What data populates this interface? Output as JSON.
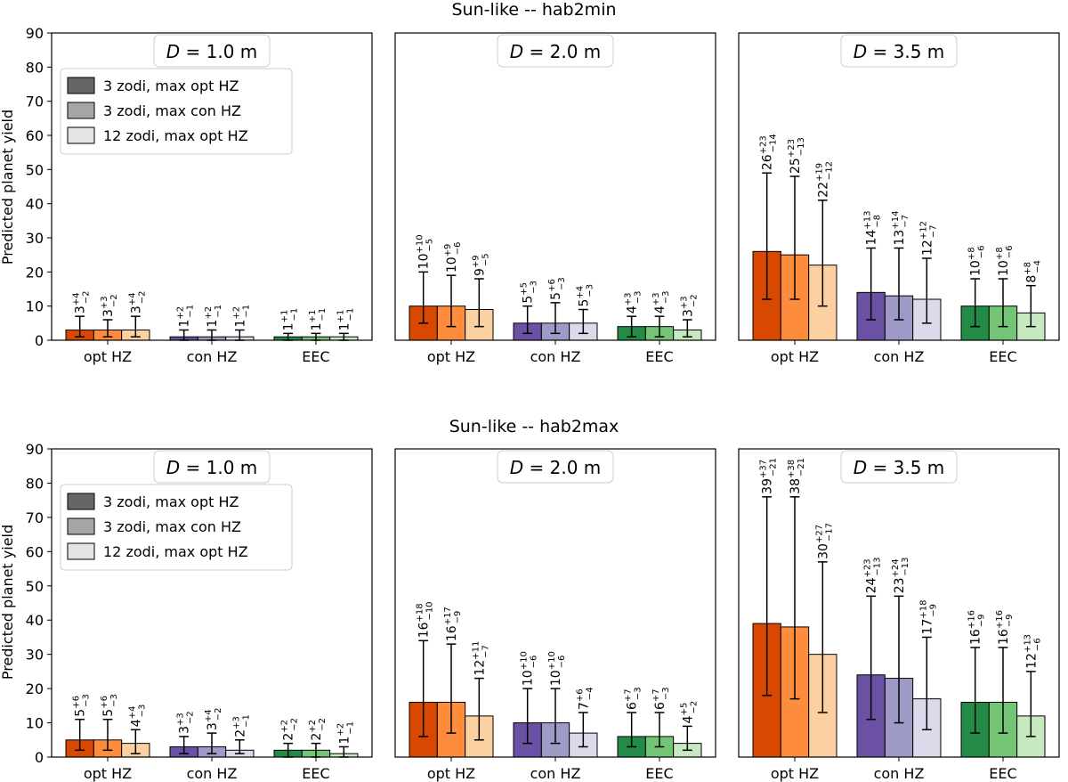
{
  "figure": {
    "rows": [
      {
        "title": "Sun-like -- hab2min",
        "panels": [
          {
            "label": "D = 1.0 m",
            "legend": true
          },
          {
            "label": "D = 2.0 m",
            "legend": false
          },
          {
            "label": "D = 3.5 m",
            "legend": false
          }
        ]
      },
      {
        "title": "Sun-like -- hab2max",
        "panels": [
          {
            "label": "D = 1.0 m",
            "legend": true
          },
          {
            "label": "D = 2.0 m",
            "legend": false
          },
          {
            "label": "D = 3.5 m",
            "legend": false
          }
        ]
      }
    ],
    "legend": [
      "3 zodi, max opt HZ",
      "3 zodi, max con HZ",
      "12 zodi, max opt HZ"
    ],
    "legend_shades": [
      "#666666",
      "#a6a6a6",
      "#e4e4e4"
    ],
    "group_colors": [
      [
        "#d94801",
        "#fd8d3c",
        "#fdd0a2"
      ],
      [
        "#6a51a3",
        "#9e9ac8",
        "#dadaeb"
      ],
      [
        "#238b45",
        "#74c476",
        "#c7e9c0"
      ]
    ]
  },
  "chart_data": [
    {
      "type": "bar",
      "title": "Sun-like -- hab2min",
      "subtitle": "D = 1.0 m",
      "categories": [
        "opt HZ",
        "con HZ",
        "EEC"
      ],
      "xlabel": "",
      "ylabel": "Predicted planet yield",
      "ylim": [
        0,
        90
      ],
      "yticks": [
        0,
        10,
        20,
        30,
        40,
        50,
        60,
        70,
        80,
        90
      ],
      "series": [
        {
          "name": "3 zodi, max opt HZ",
          "values": [
            3,
            1,
            1
          ],
          "err_plus": [
            4,
            2,
            1
          ],
          "err_minus": [
            2,
            1,
            1
          ]
        },
        {
          "name": "3 zodi, max con HZ",
          "values": [
            3,
            1,
            1
          ],
          "err_plus": [
            3,
            2,
            1
          ],
          "err_minus": [
            2,
            1,
            1
          ]
        },
        {
          "name": "12 zodi, max opt HZ",
          "values": [
            3,
            1,
            1
          ],
          "err_plus": [
            4,
            2,
            1
          ],
          "err_minus": [
            2,
            1,
            1
          ]
        }
      ]
    },
    {
      "type": "bar",
      "title": "Sun-like -- hab2min",
      "subtitle": "D = 2.0 m",
      "categories": [
        "opt HZ",
        "con HZ",
        "EEC"
      ],
      "xlabel": "",
      "ylabel": "Predicted planet yield",
      "ylim": [
        0,
        90
      ],
      "series": [
        {
          "name": "3 zodi, max opt HZ",
          "values": [
            10,
            5,
            4
          ],
          "err_plus": [
            10,
            5,
            3
          ],
          "err_minus": [
            5,
            3,
            3
          ]
        },
        {
          "name": "3 zodi, max con HZ",
          "values": [
            10,
            5,
            4
          ],
          "err_plus": [
            9,
            6,
            3
          ],
          "err_minus": [
            6,
            3,
            3
          ]
        },
        {
          "name": "12 zodi, max opt HZ",
          "values": [
            9,
            5,
            3
          ],
          "err_plus": [
            9,
            4,
            3
          ],
          "err_minus": [
            5,
            3,
            2
          ]
        }
      ]
    },
    {
      "type": "bar",
      "title": "Sun-like -- hab2min",
      "subtitle": "D = 3.5 m",
      "categories": [
        "opt HZ",
        "con HZ",
        "EEC"
      ],
      "xlabel": "",
      "ylabel": "Predicted planet yield",
      "ylim": [
        0,
        90
      ],
      "series": [
        {
          "name": "3 zodi, max opt HZ",
          "values": [
            26,
            14,
            10
          ],
          "err_plus": [
            23,
            13,
            8
          ],
          "err_minus": [
            14,
            8,
            6
          ]
        },
        {
          "name": "3 zodi, max con HZ",
          "values": [
            25,
            13,
            10
          ],
          "err_plus": [
            23,
            14,
            8
          ],
          "err_minus": [
            13,
            7,
            6
          ]
        },
        {
          "name": "12 zodi, max opt HZ",
          "values": [
            22,
            12,
            8
          ],
          "err_plus": [
            19,
            12,
            8
          ],
          "err_minus": [
            12,
            7,
            4
          ]
        }
      ]
    },
    {
      "type": "bar",
      "title": "Sun-like -- hab2max",
      "subtitle": "D = 1.0 m",
      "categories": [
        "opt HZ",
        "con HZ",
        "EEC"
      ],
      "xlabel": "",
      "ylabel": "Predicted planet yield",
      "ylim": [
        0,
        90
      ],
      "series": [
        {
          "name": "3 zodi, max opt HZ",
          "values": [
            5,
            3,
            2
          ],
          "err_plus": [
            6,
            3,
            2
          ],
          "err_minus": [
            3,
            2,
            2
          ]
        },
        {
          "name": "3 zodi, max con HZ",
          "values": [
            5,
            3,
            2
          ],
          "err_plus": [
            6,
            4,
            2
          ],
          "err_minus": [
            3,
            2,
            2
          ]
        },
        {
          "name": "12 zodi, max opt HZ",
          "values": [
            4,
            2,
            1
          ],
          "err_plus": [
            4,
            3,
            2
          ],
          "err_minus": [
            3,
            1,
            1
          ]
        }
      ]
    },
    {
      "type": "bar",
      "title": "Sun-like -- hab2max",
      "subtitle": "D = 2.0 m",
      "categories": [
        "opt HZ",
        "con HZ",
        "EEC"
      ],
      "xlabel": "",
      "ylabel": "Predicted planet yield",
      "ylim": [
        0,
        90
      ],
      "series": [
        {
          "name": "3 zodi, max opt HZ",
          "values": [
            16,
            10,
            6
          ],
          "err_plus": [
            18,
            10,
            7
          ],
          "err_minus": [
            10,
            6,
            3
          ]
        },
        {
          "name": "3 zodi, max con HZ",
          "values": [
            16,
            10,
            6
          ],
          "err_plus": [
            17,
            10,
            7
          ],
          "err_minus": [
            9,
            6,
            3
          ]
        },
        {
          "name": "12 zodi, max opt HZ",
          "values": [
            12,
            7,
            4
          ],
          "err_plus": [
            11,
            6,
            5
          ],
          "err_minus": [
            7,
            4,
            2
          ]
        }
      ]
    },
    {
      "type": "bar",
      "title": "Sun-like -- hab2max",
      "subtitle": "D = 3.5 m",
      "categories": [
        "opt HZ",
        "con HZ",
        "EEC"
      ],
      "xlabel": "",
      "ylabel": "Predicted planet yield",
      "ylim": [
        0,
        90
      ],
      "series": [
        {
          "name": "3 zodi, max opt HZ",
          "values": [
            39,
            24,
            16
          ],
          "err_plus": [
            37,
            23,
            16
          ],
          "err_minus": [
            21,
            13,
            9
          ]
        },
        {
          "name": "3 zodi, max con HZ",
          "values": [
            38,
            23,
            16
          ],
          "err_plus": [
            38,
            24,
            16
          ],
          "err_minus": [
            21,
            13,
            9
          ]
        },
        {
          "name": "12 zodi, max opt HZ",
          "values": [
            30,
            17,
            12
          ],
          "err_plus": [
            27,
            18,
            13
          ],
          "err_minus": [
            17,
            9,
            6
          ]
        }
      ]
    }
  ]
}
